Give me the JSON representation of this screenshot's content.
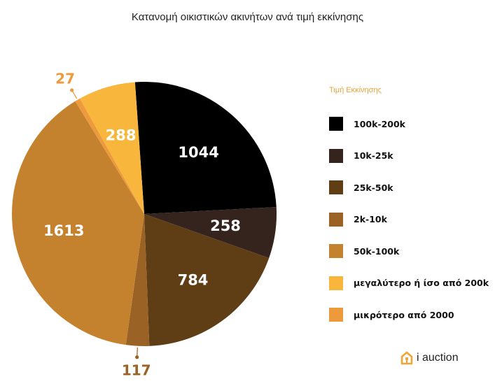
{
  "chart_data": {
    "type": "pie",
    "title": "Κατανομή οικιστικών ακινήτων ανά τιμή εκκίνησης",
    "legend_title": "Τιμή Εκκίνησης",
    "legend_position": "right",
    "start_angle_deg": -4,
    "slices": [
      {
        "label": "100k-200k",
        "value": 1044,
        "color": "#000000",
        "text_color": "#ffffff"
      },
      {
        "label": "10k-25k",
        "value": 258,
        "color": "#35231d",
        "text_color": "#ffffff"
      },
      {
        "label": "25k-50k",
        "value": 784,
        "color": "#5f3e15",
        "text_color": "#ffffff"
      },
      {
        "label": "2k-10k",
        "value": 117,
        "color": "#9a6224",
        "text_color": "#9a6224",
        "outside": true
      },
      {
        "label": "50k-100k",
        "value": 1613,
        "color": "#c5822e",
        "text_color": "#ffffff"
      },
      {
        "label": "μικρότερο από 2000",
        "value": 27,
        "color": "#ed9a3c",
        "text_color": "#ed9a3c",
        "outside": true
      },
      {
        "label": "μεγαλύτερο ή ίσο από 200k",
        "value": 288,
        "color": "#f8b73c",
        "text_color": "#ffffff"
      }
    ],
    "legend_order": [
      "100k-200k",
      "10k-25k",
      "25k-50k",
      "2k-10k",
      "50k-100k",
      "μεγαλύτερο ή ίσο από 200k",
      "μικρότερο από 2000"
    ]
  },
  "brand": {
    "name": "i auction",
    "icon": "home-icon",
    "color": "#f2a533"
  }
}
